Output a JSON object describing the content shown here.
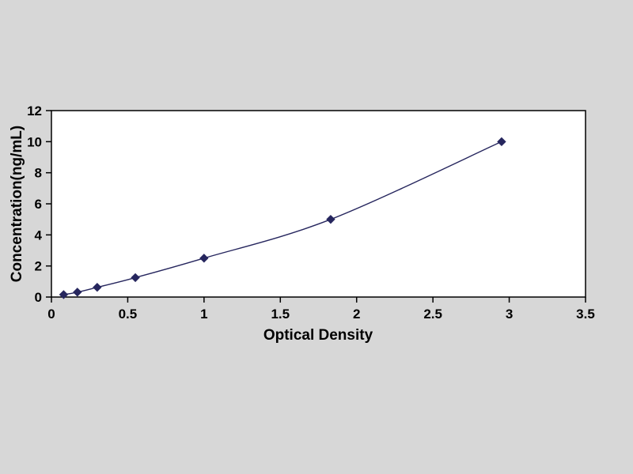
{
  "page": {
    "background_color": "#d7d7d7",
    "plot_background_color": "#ffffff",
    "axis_color": "#000000"
  },
  "chart_data": {
    "type": "line",
    "title": "",
    "xlabel": "Optical Density",
    "ylabel": "Concentration(ng/mL)",
    "x": [
      0.08,
      0.17,
      0.3,
      0.55,
      1.0,
      1.83,
      2.95
    ],
    "y": [
      0.156,
      0.3125,
      0.625,
      1.25,
      2.5,
      5,
      10
    ],
    "xlim": [
      0,
      3.5
    ],
    "ylim": [
      0,
      12
    ],
    "xticks": [
      0,
      0.5,
      1,
      1.5,
      2,
      2.5,
      3,
      3.5
    ],
    "yticks": [
      0,
      2,
      4,
      6,
      8,
      10,
      12
    ],
    "grid": false,
    "legend": "none",
    "marker": "diamond",
    "line_color": "#26265e",
    "marker_color": "#26265e"
  }
}
